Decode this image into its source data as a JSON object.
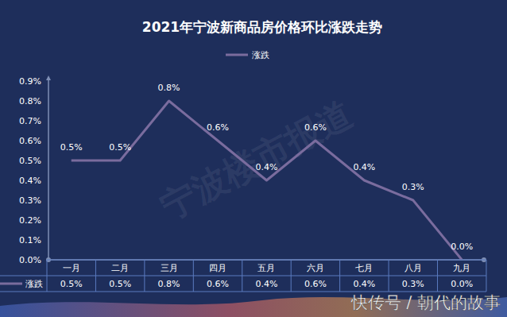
{
  "chart_data": {
    "type": "line",
    "title": "2021年宁波新商品房价格环比涨跌走势",
    "categories": [
      "一月",
      "二月",
      "三月",
      "四月",
      "五月",
      "六月",
      "七月",
      "八月",
      "九月"
    ],
    "series": [
      {
        "name": "涨跌",
        "color": "#7a6c9e",
        "values": [
          0.5,
          0.5,
          0.8,
          0.6,
          0.4,
          0.6,
          0.4,
          0.3,
          0.0
        ],
        "value_labels": [
          "0.5%",
          "0.5%",
          "0.8%",
          "0.6%",
          "0.4%",
          "0.6%",
          "0.4%",
          "0.3%",
          "0.0%"
        ]
      }
    ],
    "ylim": [
      0,
      0.9
    ],
    "yticks": [
      {
        "value": 0,
        "label": "0.0%"
      },
      {
        "value": 0.1,
        "label": "0.1%"
      },
      {
        "value": 0.2,
        "label": "0.2%"
      },
      {
        "value": 0.3,
        "label": "0.3%"
      },
      {
        "value": 0.4,
        "label": "0.4%"
      },
      {
        "value": 0.5,
        "label": "0.5%"
      },
      {
        "value": 0.6,
        "label": "0.6%"
      },
      {
        "value": 0.7,
        "label": "0.7%"
      },
      {
        "value": 0.8,
        "label": "0.8%"
      },
      {
        "value": 0.9,
        "label": "0.9%"
      }
    ],
    "grid": false,
    "legend": "top",
    "data_labels": true,
    "annotations": [
      "宁波楼市报道",
      "快传号 / 朝代的故事"
    ]
  }
}
